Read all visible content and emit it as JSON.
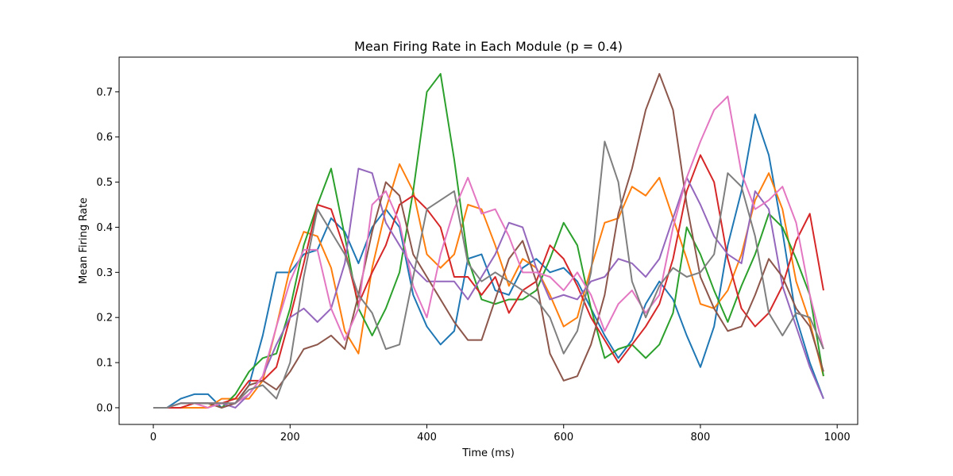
{
  "chart_data": {
    "type": "line",
    "title": "Mean Firing Rate in Each Module (p = 0.4)",
    "xlabel": "Time (ms)",
    "ylabel": "Mean Firing Rate",
    "xlim": [
      -50,
      1030
    ],
    "ylim": [
      -0.037,
      0.777
    ],
    "xticks": [
      0,
      200,
      400,
      600,
      800,
      1000
    ],
    "yticks": [
      0.0,
      0.1,
      0.2,
      0.3,
      0.4,
      0.5,
      0.6,
      0.7
    ],
    "xtick_labels": [
      "0",
      "200",
      "400",
      "600",
      "800",
      "1000"
    ],
    "ytick_labels": [
      "0.0",
      "0.1",
      "0.2",
      "0.3",
      "0.4",
      "0.5",
      "0.6",
      "0.7"
    ],
    "grid": false,
    "legend": "none",
    "x": [
      0,
      20,
      40,
      60,
      80,
      100,
      120,
      140,
      160,
      180,
      200,
      220,
      240,
      260,
      280,
      300,
      320,
      340,
      360,
      380,
      400,
      420,
      440,
      460,
      480,
      500,
      520,
      540,
      560,
      580,
      600,
      620,
      640,
      660,
      680,
      700,
      720,
      740,
      760,
      780,
      800,
      820,
      840,
      860,
      880,
      900,
      920,
      940,
      960,
      980
    ],
    "series": [
      {
        "color": "#1f77b4",
        "values": [
          0,
          0,
          0.02,
          0.03,
          0.03,
          0,
          0.01,
          0.05,
          0.16,
          0.3,
          0.3,
          0.34,
          0.35,
          0.42,
          0.39,
          0.32,
          0.4,
          0.44,
          0.4,
          0.25,
          0.18,
          0.14,
          0.17,
          0.33,
          0.34,
          0.26,
          0.25,
          0.31,
          0.33,
          0.3,
          0.31,
          0.28,
          0.22,
          0.16,
          0.11,
          0.15,
          0.23,
          0.28,
          0.24,
          0.16,
          0.09,
          0.18,
          0.36,
          0.48,
          0.65,
          0.56,
          0.39,
          0.2,
          0.1,
          0.02
        ]
      },
      {
        "color": "#ff7f0e",
        "values": [
          0,
          0,
          0,
          0,
          0,
          0.02,
          0.02,
          0.02,
          0.06,
          0.18,
          0.31,
          0.39,
          0.38,
          0.31,
          0.17,
          0.12,
          0.31,
          0.44,
          0.54,
          0.48,
          0.34,
          0.31,
          0.34,
          0.45,
          0.44,
          0.36,
          0.27,
          0.33,
          0.31,
          0.25,
          0.18,
          0.2,
          0.31,
          0.41,
          0.42,
          0.49,
          0.47,
          0.51,
          0.42,
          0.33,
          0.23,
          0.22,
          0.26,
          0.34,
          0.46,
          0.52,
          0.44,
          0.28,
          0.19,
          0.07
        ]
      },
      {
        "color": "#2ca02c",
        "values": [
          0,
          0,
          0.01,
          0.01,
          0.01,
          0,
          0.03,
          0.08,
          0.11,
          0.12,
          0.22,
          0.36,
          0.45,
          0.53,
          0.38,
          0.22,
          0.16,
          0.22,
          0.3,
          0.48,
          0.7,
          0.74,
          0.55,
          0.33,
          0.24,
          0.23,
          0.24,
          0.24,
          0.26,
          0.33,
          0.41,
          0.36,
          0.22,
          0.11,
          0.13,
          0.14,
          0.11,
          0.14,
          0.21,
          0.4,
          0.34,
          0.26,
          0.19,
          0.27,
          0.34,
          0.43,
          0.4,
          0.33,
          0.25,
          0.07
        ]
      },
      {
        "color": "#d62728",
        "values": [
          0,
          0,
          0,
          0.01,
          0.01,
          0.01,
          0.02,
          0.06,
          0.06,
          0.09,
          0.2,
          0.32,
          0.45,
          0.44,
          0.35,
          0.23,
          0.3,
          0.36,
          0.45,
          0.47,
          0.44,
          0.4,
          0.29,
          0.29,
          0.25,
          0.29,
          0.21,
          0.26,
          0.28,
          0.36,
          0.33,
          0.27,
          0.2,
          0.15,
          0.1,
          0.14,
          0.18,
          0.23,
          0.33,
          0.48,
          0.56,
          0.5,
          0.33,
          0.22,
          0.18,
          0.21,
          0.27,
          0.37,
          0.43,
          0.26
        ]
      },
      {
        "color": "#9467bd",
        "values": [
          0,
          0,
          0.01,
          0.01,
          0.01,
          0.01,
          0,
          0.03,
          0.07,
          0.14,
          0.2,
          0.22,
          0.19,
          0.22,
          0.32,
          0.53,
          0.52,
          0.41,
          0.36,
          0.31,
          0.28,
          0.28,
          0.28,
          0.24,
          0.29,
          0.34,
          0.41,
          0.4,
          0.31,
          0.24,
          0.25,
          0.24,
          0.28,
          0.29,
          0.33,
          0.32,
          0.29,
          0.33,
          0.42,
          0.51,
          0.45,
          0.38,
          0.34,
          0.32,
          0.48,
          0.44,
          0.27,
          0.18,
          0.09,
          0.02
        ]
      },
      {
        "color": "#8c564b",
        "values": [
          0,
          0,
          0.01,
          0.01,
          0.01,
          0,
          0.01,
          0.05,
          0.06,
          0.04,
          0.08,
          0.13,
          0.14,
          0.16,
          0.13,
          0.25,
          0.39,
          0.5,
          0.47,
          0.34,
          0.29,
          0.24,
          0.19,
          0.15,
          0.15,
          0.24,
          0.33,
          0.37,
          0.28,
          0.12,
          0.06,
          0.07,
          0.14,
          0.25,
          0.43,
          0.53,
          0.66,
          0.74,
          0.66,
          0.45,
          0.29,
          0.22,
          0.17,
          0.18,
          0.25,
          0.33,
          0.29,
          0.22,
          0.18,
          0.08
        ]
      },
      {
        "color": "#e377c2",
        "values": [
          0,
          0,
          0.01,
          0.01,
          0,
          0.01,
          0.01,
          0.03,
          0.07,
          0.18,
          0.28,
          0.35,
          0.35,
          0.22,
          0.15,
          0.22,
          0.45,
          0.48,
          0.41,
          0.27,
          0.2,
          0.34,
          0.44,
          0.51,
          0.43,
          0.44,
          0.38,
          0.3,
          0.3,
          0.29,
          0.26,
          0.3,
          0.25,
          0.17,
          0.23,
          0.26,
          0.21,
          0.25,
          0.4,
          0.51,
          0.59,
          0.66,
          0.69,
          0.52,
          0.44,
          0.46,
          0.49,
          0.41,
          0.25,
          0.13
        ]
      },
      {
        "color": "#7f7f7f",
        "values": [
          0,
          0,
          0.01,
          0.01,
          0.01,
          0.01,
          0.01,
          0.04,
          0.05,
          0.02,
          0.1,
          0.29,
          0.44,
          0.39,
          0.34,
          0.25,
          0.21,
          0.13,
          0.14,
          0.29,
          0.44,
          0.46,
          0.48,
          0.32,
          0.28,
          0.3,
          0.28,
          0.26,
          0.24,
          0.2,
          0.12,
          0.17,
          0.3,
          0.59,
          0.5,
          0.28,
          0.2,
          0.27,
          0.31,
          0.29,
          0.3,
          0.34,
          0.52,
          0.49,
          0.38,
          0.21,
          0.16,
          0.21,
          0.2,
          0.13
        ]
      }
    ]
  }
}
